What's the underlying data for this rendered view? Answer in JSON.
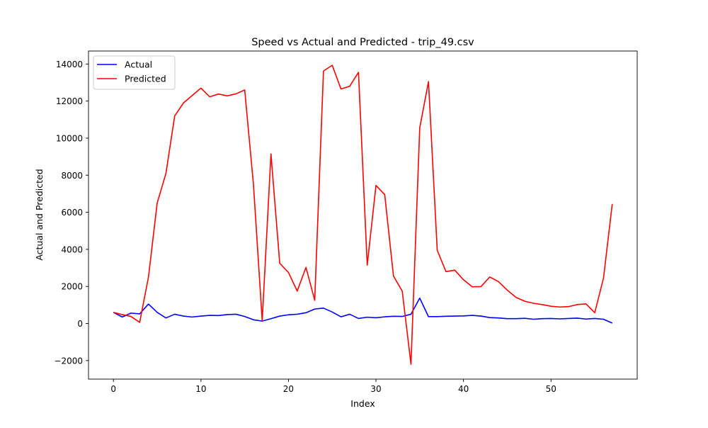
{
  "chart_data": {
    "type": "line",
    "title": "Speed vs Actual and Predicted - trip_49.csv",
    "xlabel": "Index",
    "ylabel": "Actual and Predicted",
    "xlim": [
      -2.85,
      59.85
    ],
    "ylim": [
      -3000,
      14700
    ],
    "xticks": [
      0,
      10,
      20,
      30,
      40,
      50
    ],
    "yticks": [
      -2000,
      0,
      2000,
      4000,
      6000,
      8000,
      10000,
      12000,
      14000
    ],
    "xtick_labels": [
      "0",
      "10",
      "20",
      "30",
      "40",
      "50"
    ],
    "ytick_labels": [
      "−2000",
      "0",
      "2000",
      "4000",
      "6000",
      "8000",
      "10000",
      "12000",
      "14000"
    ],
    "grid": false,
    "legend_position": "upper-left",
    "x": [
      0,
      1,
      2,
      3,
      4,
      5,
      6,
      7,
      8,
      9,
      10,
      11,
      12,
      13,
      14,
      15,
      16,
      17,
      18,
      19,
      20,
      21,
      22,
      23,
      24,
      25,
      26,
      27,
      28,
      29,
      30,
      31,
      32,
      33,
      34,
      35,
      36,
      37,
      38,
      39,
      40,
      41,
      42,
      43,
      44,
      45,
      46,
      47,
      48,
      49,
      50,
      51,
      52,
      53,
      54,
      55,
      56,
      57
    ],
    "series": [
      {
        "name": "Actual",
        "color": "#0000ff",
        "values": [
          600,
          350,
          560,
          520,
          1050,
          600,
          300,
          500,
          400,
          350,
          400,
          440,
          430,
          480,
          500,
          380,
          200,
          130,
          260,
          400,
          470,
          500,
          580,
          780,
          830,
          620,
          360,
          500,
          270,
          340,
          310,
          360,
          390,
          380,
          500,
          1370,
          370,
          370,
          390,
          400,
          410,
          440,
          400,
          320,
          300,
          260,
          260,
          280,
          230,
          260,
          270,
          250,
          270,
          290,
          240,
          270,
          230,
          20
        ]
      },
      {
        "name": "Predicted",
        "color": "#ff0000",
        "values": [
          600,
          480,
          380,
          60,
          2500,
          6500,
          8100,
          11200,
          11900,
          12300,
          12700,
          12230,
          12380,
          12280,
          12390,
          12600,
          7500,
          150,
          9150,
          3250,
          2750,
          1750,
          3030,
          1250,
          13620,
          13930,
          12650,
          12800,
          13550,
          3150,
          7450,
          6950,
          2560,
          1750,
          -2200,
          10550,
          13050,
          3950,
          2800,
          2880,
          2360,
          1980,
          1990,
          2510,
          2260,
          1800,
          1410,
          1200,
          1090,
          1020,
          930,
          890,
          910,
          1020,
          1060,
          580,
          2450,
          6450
        ]
      }
    ]
  }
}
